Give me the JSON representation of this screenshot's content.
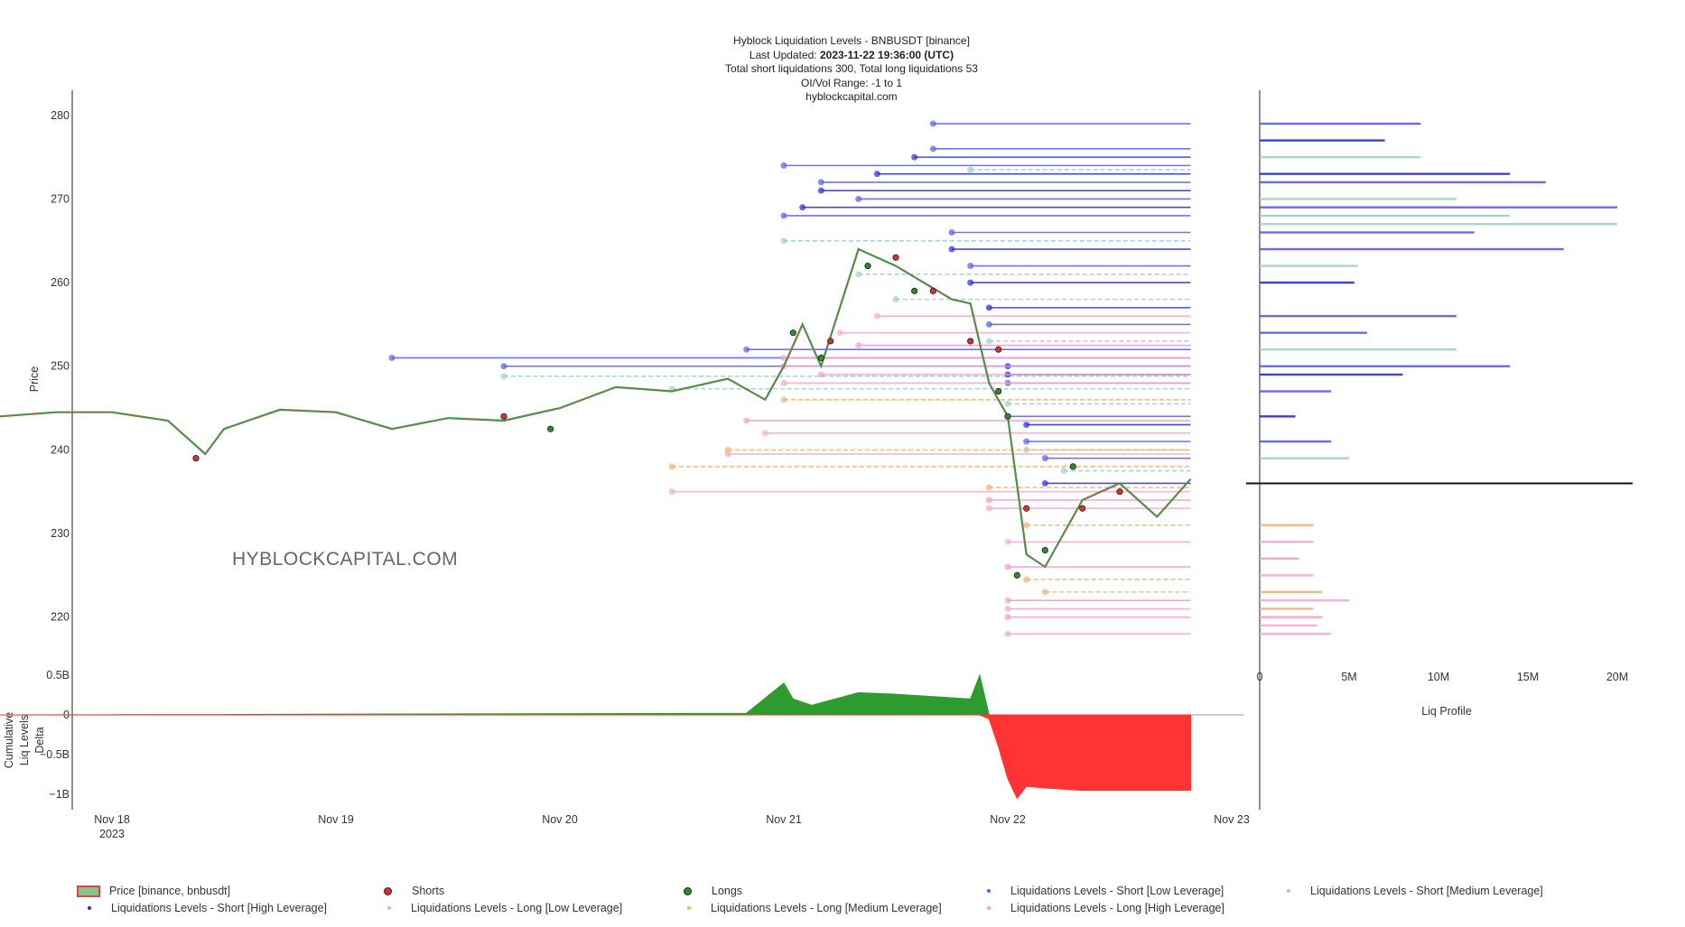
{
  "header": {
    "title": "Hyblock Liquidation Levels - BNBUSDT [binance]",
    "updated_label": "Last Updated:",
    "updated_value": "2023-11-22 19:36:00 (UTC)",
    "totals": "Total short liquidations 300, Total long liquidations 53",
    "oi_range": "OI/Vol Range: -1 to 1",
    "site": "hyblockcapital.com"
  },
  "watermark": "HYBLOCKCAPITAL.COM",
  "colors": {
    "short_low": "#5a5af0",
    "short_medium": "#9fd0c8",
    "short_high": "#2a2ad8",
    "long_low": "#f7a8d2",
    "long_medium": "#f2b273",
    "long_high": "#f59cc8",
    "price_up": "#3c9a4a",
    "price_down": "#e04545",
    "delta_pos": "#2e9b2e",
    "delta_neg": "#ff3333",
    "shorts_marker": "#d93030",
    "longs_marker": "#2e8b2e"
  },
  "chart_data": [
    {
      "type": "line",
      "name": "price",
      "ylabel": "Price",
      "ylim": [
        215,
        283
      ],
      "yticks": [
        "220",
        "230",
        "240",
        "250",
        "260",
        "270",
        "280"
      ],
      "x_ticks": [
        "Nov 18",
        "Nov 19",
        "Nov 20",
        "Nov 21",
        "Nov 22",
        "Nov 23"
      ],
      "x_year_label": "2023",
      "price_series": {
        "name": "Price [binance, bnbusdt]",
        "x": [
          "Nov 17 12:00",
          "Nov 17 18:00",
          "Nov 18 00:00",
          "Nov 18 06:00",
          "Nov 18 10:00",
          "Nov 18 12:00",
          "Nov 18 18:00",
          "Nov 19 00:00",
          "Nov 19 06:00",
          "Nov 19 12:00",
          "Nov 19 18:00",
          "Nov 20 00:00",
          "Nov 20 06:00",
          "Nov 20 12:00",
          "Nov 20 18:00",
          "Nov 20 22:00",
          "Nov 21 00:00",
          "Nov 21 02:00",
          "Nov 21 04:00",
          "Nov 21 08:00",
          "Nov 21 12:00",
          "Nov 21 18:00",
          "Nov 21 20:00",
          "Nov 21 22:00",
          "Nov 22 00:00",
          "Nov 22 02:00",
          "Nov 22 04:00",
          "Nov 22 08:00",
          "Nov 22 12:00",
          "Nov 22 16:00",
          "Nov 22 19:36"
        ],
        "y": [
          244,
          244.5,
          244.5,
          243.5,
          239.5,
          242.5,
          244.8,
          244.5,
          242.5,
          243.8,
          243.5,
          245,
          247.5,
          247,
          248.5,
          246,
          250,
          255,
          250,
          264,
          262,
          258,
          257.5,
          248,
          244,
          227.5,
          226,
          234,
          236,
          232,
          236.5
        ]
      },
      "shorts_markers": {
        "name": "Shorts",
        "points": [
          {
            "x": "Nov 18 09:00",
            "y": 239
          },
          {
            "x": "Nov 19 18:00",
            "y": 244
          },
          {
            "x": "Nov 21 05:00",
            "y": 253
          },
          {
            "x": "Nov 21 12:00",
            "y": 263
          },
          {
            "x": "Nov 21 16:00",
            "y": 259
          },
          {
            "x": "Nov 21 20:00",
            "y": 253
          },
          {
            "x": "Nov 21 23:00",
            "y": 252
          },
          {
            "x": "Nov 22 02:00",
            "y": 233
          },
          {
            "x": "Nov 22 08:00",
            "y": 233
          },
          {
            "x": "Nov 22 12:00",
            "y": 235
          }
        ]
      },
      "longs_markers": {
        "name": "Longs",
        "points": [
          {
            "x": "Nov 19 23:00",
            "y": 242.5
          },
          {
            "x": "Nov 21 01:00",
            "y": 254
          },
          {
            "x": "Nov 21 04:00",
            "y": 251
          },
          {
            "x": "Nov 21 09:00",
            "y": 262
          },
          {
            "x": "Nov 21 14:00",
            "y": 259
          },
          {
            "x": "Nov 21 23:00",
            "y": 247
          },
          {
            "x": "Nov 22 00:00",
            "y": 244
          },
          {
            "x": "Nov 22 01:00",
            "y": 225
          },
          {
            "x": "Nov 22 04:00",
            "y": 228
          },
          {
            "x": "Nov 22 07:00",
            "y": 238
          }
        ]
      },
      "liquidation_levels": [
        {
          "name": "Liquidations Levels - Short [Low Leverage]",
          "color_key": "short_low",
          "levels": [
            {
              "start": "Nov 19 06:00",
              "y": 251
            },
            {
              "start": "Nov 19 18:00",
              "y": 250
            },
            {
              "start": "Nov 20 20:00",
              "y": 252
            },
            {
              "start": "Nov 21 00:00",
              "y": 274
            },
            {
              "start": "Nov 21 00:00",
              "y": 268
            },
            {
              "start": "Nov 21 04:00",
              "y": 272
            },
            {
              "start": "Nov 21 08:00",
              "y": 270
            },
            {
              "start": "Nov 21 16:00",
              "y": 276
            },
            {
              "start": "Nov 21 16:00",
              "y": 279
            },
            {
              "start": "Nov 21 18:00",
              "y": 266
            },
            {
              "start": "Nov 21 20:00",
              "y": 262
            },
            {
              "start": "Nov 21 22:00",
              "y": 255
            },
            {
              "start": "Nov 22 00:00",
              "y": 248
            },
            {
              "start": "Nov 22 00:00",
              "y": 244
            },
            {
              "start": "Nov 22 02:00",
              "y": 241
            },
            {
              "start": "Nov 22 04:00",
              "y": 239
            }
          ]
        },
        {
          "name": "Liquidations Levels - Short [Medium Leverage]",
          "color_key": "short_medium",
          "levels": [
            {
              "start": "Nov 19 18:00",
              "y": 248.8
            },
            {
              "start": "Nov 20 12:00",
              "y": 247.3
            },
            {
              "start": "Nov 21 00:00",
              "y": 265
            },
            {
              "start": "Nov 21 08:00",
              "y": 261
            },
            {
              "start": "Nov 21 12:00",
              "y": 258
            },
            {
              "start": "Nov 21 20:00",
              "y": 273.5
            },
            {
              "start": "Nov 21 22:00",
              "y": 253
            },
            {
              "start": "Nov 22 00:00",
              "y": 245.5
            },
            {
              "start": "Nov 22 02:00",
              "y": 240
            },
            {
              "start": "Nov 22 06:00",
              "y": 237.5
            }
          ]
        },
        {
          "name": "Liquidations Levels - Short [High Leverage]",
          "color_key": "short_high",
          "levels": [
            {
              "start": "Nov 21 02:00",
              "y": 269
            },
            {
              "start": "Nov 21 04:00",
              "y": 271
            },
            {
              "start": "Nov 21 10:00",
              "y": 273
            },
            {
              "start": "Nov 21 14:00",
              "y": 275
            },
            {
              "start": "Nov 21 18:00",
              "y": 264
            },
            {
              "start": "Nov 21 20:00",
              "y": 260
            },
            {
              "start": "Nov 21 22:00",
              "y": 257
            },
            {
              "start": "Nov 22 00:00",
              "y": 250
            },
            {
              "start": "Nov 22 00:00",
              "y": 249
            },
            {
              "start": "Nov 22 02:00",
              "y": 243
            },
            {
              "start": "Nov 22 04:00",
              "y": 236
            }
          ]
        },
        {
          "name": "Liquidations Levels - Long [Low Leverage]",
          "color_key": "long_low",
          "levels": [
            {
              "start": "Nov 20 12:00",
              "y": 235
            },
            {
              "start": "Nov 20 18:00",
              "y": 239.5
            },
            {
              "start": "Nov 20 22:00",
              "y": 242
            },
            {
              "start": "Nov 21 00:00",
              "y": 251
            },
            {
              "start": "Nov 21 00:00",
              "y": 248
            },
            {
              "start": "Nov 21 06:00",
              "y": 254
            },
            {
              "start": "Nov 21 10:00",
              "y": 256
            },
            {
              "start": "Nov 21 22:00",
              "y": 233
            },
            {
              "start": "Nov 22 00:00",
              "y": 229
            },
            {
              "start": "Nov 22 00:00",
              "y": 221
            },
            {
              "start": "Nov 22 00:00",
              "y": 218
            }
          ]
        },
        {
          "name": "Liquidations Levels - Long [Medium Leverage]",
          "color_key": "long_medium",
          "levels": [
            {
              "start": "Nov 20 12:00",
              "y": 238
            },
            {
              "start": "Nov 20 18:00",
              "y": 240
            },
            {
              "start": "Nov 21 00:00",
              "y": 246
            },
            {
              "start": "Nov 21 22:00",
              "y": 235.5
            },
            {
              "start": "Nov 22 02:00",
              "y": 231
            },
            {
              "start": "Nov 22 02:00",
              "y": 224.5
            },
            {
              "start": "Nov 22 04:00",
              "y": 223
            }
          ]
        },
        {
          "name": "Liquidations Levels - Long [High Leverage]",
          "color_key": "long_high",
          "levels": [
            {
              "start": "Nov 20 20:00",
              "y": 243.5
            },
            {
              "start": "Nov 21 00:00",
              "y": 250
            },
            {
              "start": "Nov 21 04:00",
              "y": 249
            },
            {
              "start": "Nov 21 08:00",
              "y": 252.5
            },
            {
              "start": "Nov 21 22:00",
              "y": 234
            },
            {
              "start": "Nov 22 00:00",
              "y": 226
            },
            {
              "start": "Nov 22 00:00",
              "y": 222
            },
            {
              "start": "Nov 22 00:00",
              "y": 220
            }
          ]
        }
      ]
    },
    {
      "type": "area",
      "name": "delta",
      "ylabel": "Cumulative Liq Levels Delta",
      "ylim": [
        -1.1,
        0.55
      ],
      "yticks": [
        "0.5B",
        "0",
        "−0.5B",
        "−1B"
      ],
      "x": [
        "Nov 17 12:00",
        "Nov 20 20:00",
        "Nov 21 00:00",
        "Nov 21 01:00",
        "Nov 21 03:00",
        "Nov 21 08:00",
        "Nov 21 12:00",
        "Nov 21 20:00",
        "Nov 21 21:00",
        "Nov 21 22:00",
        "Nov 21 23:00",
        "Nov 22 00:00",
        "Nov 22 01:00",
        "Nov 22 02:00",
        "Nov 22 04:00",
        "Nov 22 08:00",
        "Nov 22 12:00",
        "Nov 22 16:00",
        "Nov 22 19:36"
      ],
      "values": [
        0,
        0.02,
        0.4,
        0.2,
        0.12,
        0.28,
        0.26,
        0.2,
        0.5,
        -0.05,
        -0.4,
        -0.8,
        -1.05,
        -0.9,
        -0.92,
        -0.95,
        -0.95,
        -0.95,
        -0.95
      ]
    },
    {
      "type": "bar",
      "name": "liq_profile",
      "xlabel": "Liq Profile",
      "xticks": [
        "0",
        "5M",
        "10M",
        "15M",
        "20M"
      ],
      "xlim": [
        0,
        21
      ],
      "bars": [
        {
          "y": 279,
          "value": 9,
          "color_key": "short_low"
        },
        {
          "y": 277,
          "value": 7,
          "color_key": "short_high"
        },
        {
          "y": 275,
          "value": 9,
          "color_key": "short_medium"
        },
        {
          "y": 273,
          "value": 14,
          "color_key": "short_high"
        },
        {
          "y": 272,
          "value": 16,
          "color_key": "short_low"
        },
        {
          "y": 270,
          "value": 11,
          "color_key": "short_medium"
        },
        {
          "y": 269,
          "value": 20,
          "color_key": "short_low"
        },
        {
          "y": 268,
          "value": 14,
          "color_key": "short_medium"
        },
        {
          "y": 267,
          "value": 20,
          "color_key": "short_medium"
        },
        {
          "y": 266,
          "value": 12,
          "color_key": "short_low"
        },
        {
          "y": 264,
          "value": 17,
          "color_key": "short_low"
        },
        {
          "y": 262,
          "value": 5.5,
          "color_key": "short_medium"
        },
        {
          "y": 260,
          "value": 5.3,
          "color_key": "short_high"
        },
        {
          "y": 256,
          "value": 11,
          "color_key": "short_low"
        },
        {
          "y": 254,
          "value": 6,
          "color_key": "short_low"
        },
        {
          "y": 252,
          "value": 11,
          "color_key": "short_medium"
        },
        {
          "y": 250,
          "value": 14,
          "color_key": "short_low"
        },
        {
          "y": 249,
          "value": 8,
          "color_key": "short_high"
        },
        {
          "y": 247,
          "value": 4,
          "color_key": "short_low"
        },
        {
          "y": 244,
          "value": 2,
          "color_key": "short_high"
        },
        {
          "y": 241,
          "value": 4,
          "color_key": "short_low"
        },
        {
          "y": 239,
          "value": 5,
          "color_key": "short_medium"
        },
        {
          "y": 231,
          "value": 3,
          "color_key": "long_medium"
        },
        {
          "y": 229,
          "value": 3,
          "color_key": "long_low"
        },
        {
          "y": 227,
          "value": 2.2,
          "color_key": "long_high"
        },
        {
          "y": 225,
          "value": 3,
          "color_key": "long_low"
        },
        {
          "y": 223,
          "value": 3.5,
          "color_key": "long_medium"
        },
        {
          "y": 222,
          "value": 5,
          "color_key": "long_low"
        },
        {
          "y": 221,
          "value": 3,
          "color_key": "long_medium"
        },
        {
          "y": 220,
          "value": 3.5,
          "color_key": "long_high"
        },
        {
          "y": 219,
          "value": 3.2,
          "color_key": "long_low"
        },
        {
          "y": 218,
          "value": 4,
          "color_key": "long_low"
        }
      ],
      "current_price_line": 236
    }
  ],
  "legend": {
    "items": [
      {
        "label": "Price [binance, bnbusdt]",
        "kind": "price"
      },
      {
        "label": "Shorts",
        "kind": "short-dot"
      },
      {
        "label": "Longs",
        "kind": "long-dot"
      },
      {
        "label": "Liquidations Levels - Short [Low Leverage]",
        "kind": "short_low"
      },
      {
        "label": "Liquidations Levels - Short [Medium Leverage]",
        "kind": "short_medium"
      },
      {
        "label": "Liquidations Levels - Short [High Leverage]",
        "kind": "short_high"
      },
      {
        "label": "Liquidations Levels - Long [Low Leverage]",
        "kind": "long_low"
      },
      {
        "label": "Liquidations Levels - Long [Medium Leverage]",
        "kind": "long_medium"
      },
      {
        "label": "Liquidations Levels - Long [High Leverage]",
        "kind": "long_high"
      }
    ]
  }
}
